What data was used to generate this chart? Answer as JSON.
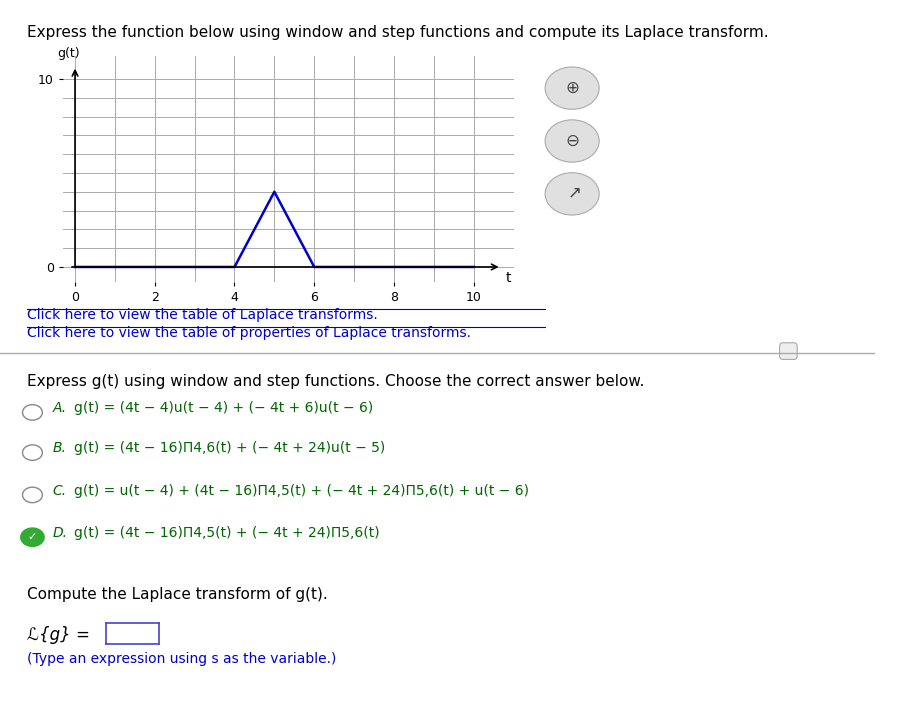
{
  "title_text": "Express the function below using window and step functions and compute its Laplace transform.",
  "graph": {
    "xlim": [
      0,
      10
    ],
    "ylim": [
      0,
      10
    ],
    "xticks": [
      0,
      2,
      4,
      6,
      8,
      10
    ],
    "yticks": [
      0,
      10
    ],
    "triangle_x": [
      0,
      4,
      5,
      6,
      10
    ],
    "triangle_y": [
      0,
      0,
      4,
      0,
      0
    ],
    "line_color": "#0000cc",
    "grid_color": "#aaaaaa"
  },
  "link1": "Click here to view the table of Laplace transforms.",
  "link2": "Click here to view the table of properties of Laplace transforms.",
  "section_title": "Express g(t) using window and step functions. Choose the correct answer below.",
  "options": [
    {
      "label": "A.",
      "text": "g(t) = (4t − 4)u(t − 4) + (− 4t + 6)u(t − 6)",
      "selected": false,
      "correct": false
    },
    {
      "label": "B.",
      "text": "g(t) = (4t − 16)Π4,6(t) + (− 4t + 24)u(t − 5)",
      "selected": false,
      "correct": false
    },
    {
      "label": "C.",
      "text": "g(t) = u(t − 4) + (4t − 16)Π4,5(t) + (− 4t + 24)Π5,6(t) + u(t − 6)",
      "selected": false,
      "correct": false
    },
    {
      "label": "D.",
      "text": "g(t) = (4t − 16)Π4,5(t) + (− 4t + 24)Π5,6(t)",
      "selected": true,
      "correct": true
    }
  ],
  "compute_text": "Compute the Laplace transform of g(t).",
  "laplace_label": "ℒ{g} =",
  "type_hint": "(Type an expression using s as the variable.)",
  "link_color": "#0000cc",
  "text_color": "#000000",
  "option_text_color": "#006600",
  "bg_color": "#ffffff"
}
